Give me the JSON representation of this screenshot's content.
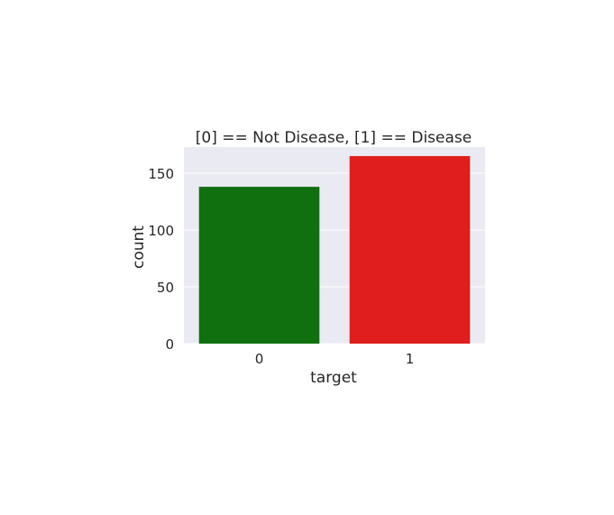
{
  "chart_data": {
    "type": "bar",
    "title": "[0] == Not Disease, [1] == Disease",
    "xlabel": "target",
    "ylabel": "count",
    "categories": [
      "0",
      "1"
    ],
    "values": [
      138,
      165
    ],
    "colors": [
      "#107010",
      "#e01e1e"
    ],
    "ylim": [
      0,
      173
    ],
    "yticks": [
      0,
      50,
      100,
      150
    ],
    "grid": true,
    "background": "#eaeaf2",
    "grid_color": "#ffffff"
  }
}
